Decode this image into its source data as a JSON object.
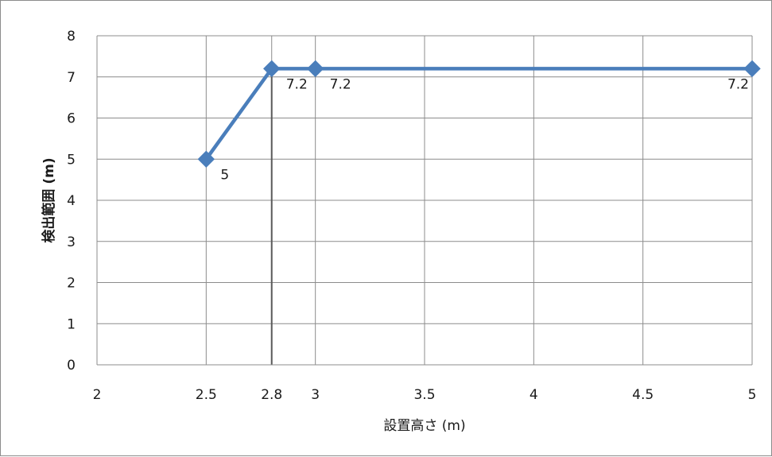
{
  "chart_data": {
    "type": "scatter",
    "title": "",
    "xlabel": "設置高さ (m)",
    "ylabel": "検出範囲 (m)",
    "xlim": [
      2,
      5
    ],
    "ylim": [
      0,
      8
    ],
    "grid": true,
    "legend": "none",
    "x_ticks": [
      {
        "value": 2,
        "label": "2"
      },
      {
        "value": 2.5,
        "label": "2.5"
      },
      {
        "value": 2.8,
        "label": "2.8"
      },
      {
        "value": 3,
        "label": "3"
      },
      {
        "value": 3.5,
        "label": "3.5"
      },
      {
        "value": 4,
        "label": "4"
      },
      {
        "value": 4.5,
        "label": "4.5"
      },
      {
        "value": 5,
        "label": "5"
      }
    ],
    "y_ticks": [
      {
        "value": 0,
        "label": "0"
      },
      {
        "value": 1,
        "label": "1"
      },
      {
        "value": 2,
        "label": "2"
      },
      {
        "value": 3,
        "label": "3"
      },
      {
        "value": 4,
        "label": "4"
      },
      {
        "value": 5,
        "label": "5"
      },
      {
        "value": 6,
        "label": "6"
      },
      {
        "value": 7,
        "label": "7"
      },
      {
        "value": 8,
        "label": "8"
      }
    ],
    "series": [
      {
        "color": "#4a7ebb",
        "marker": "diamond",
        "points": [
          {
            "x": 2.5,
            "y": 5,
            "label": "5"
          },
          {
            "x": 2.8,
            "y": 7.2,
            "label": "7.2"
          },
          {
            "x": 3,
            "y": 7.2,
            "label": "7.2"
          },
          {
            "x": 5,
            "y": 7.2,
            "label": "7.2"
          }
        ]
      }
    ],
    "reference_lines": [
      {
        "orientation": "vertical",
        "x": 2.8,
        "color": "#595959"
      }
    ]
  }
}
